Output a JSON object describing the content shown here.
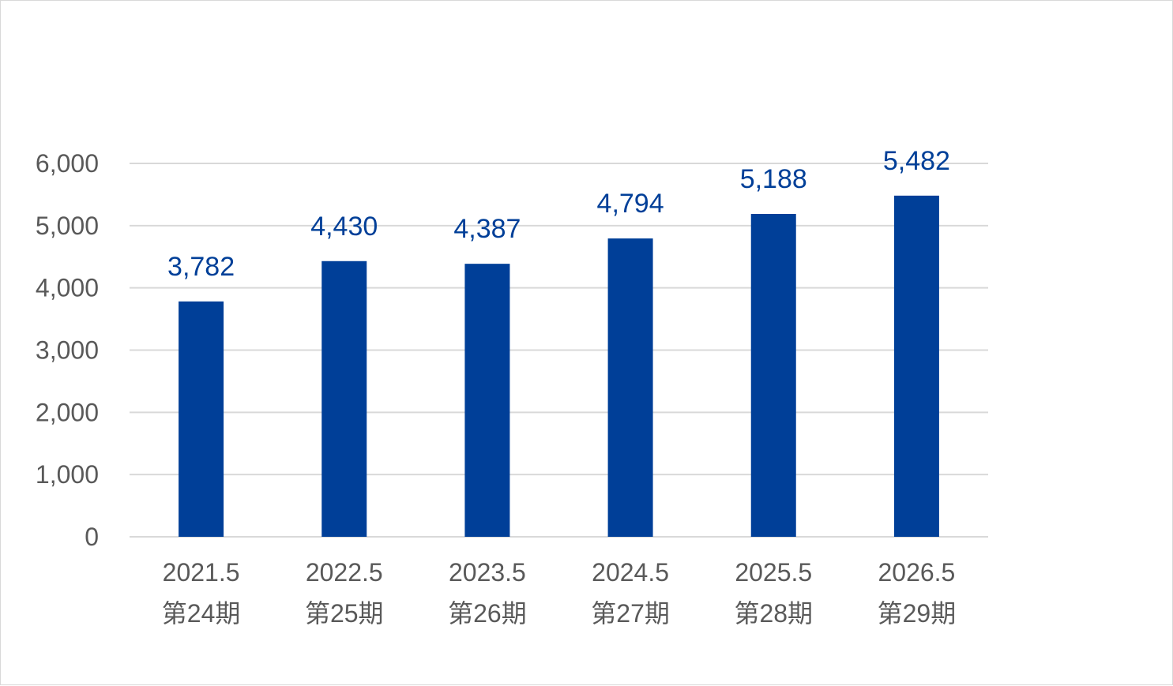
{
  "chart_data": {
    "type": "bar",
    "title": "",
    "xlabel": "",
    "ylabel": "",
    "categories": [
      [
        "2021.5",
        "第24期"
      ],
      [
        "2022.5",
        "第25期"
      ],
      [
        "2023.5",
        "第26期"
      ],
      [
        "2024.5",
        "第27期"
      ],
      [
        "2025.5",
        "第28期"
      ],
      [
        "2026.5",
        "第29期"
      ]
    ],
    "values": [
      3782,
      4430,
      4387,
      4794,
      5188,
      5482
    ],
    "data_labels": [
      "3,782",
      "4,430",
      "4,387",
      "4,794",
      "5,188",
      "5,482"
    ],
    "ylim": [
      0,
      6000
    ],
    "yticks": [
      0,
      1000,
      2000,
      3000,
      4000,
      5000,
      6000
    ],
    "ytick_labels": [
      "0",
      "1,000",
      "2,000",
      "3,000",
      "4,000",
      "5,000",
      "6,000"
    ],
    "grid": true,
    "legend": "none",
    "colors": {
      "bar": "#003f98",
      "data_label": "#003f98",
      "grid": "#d9d9d9",
      "tick_text": "#595959"
    }
  }
}
